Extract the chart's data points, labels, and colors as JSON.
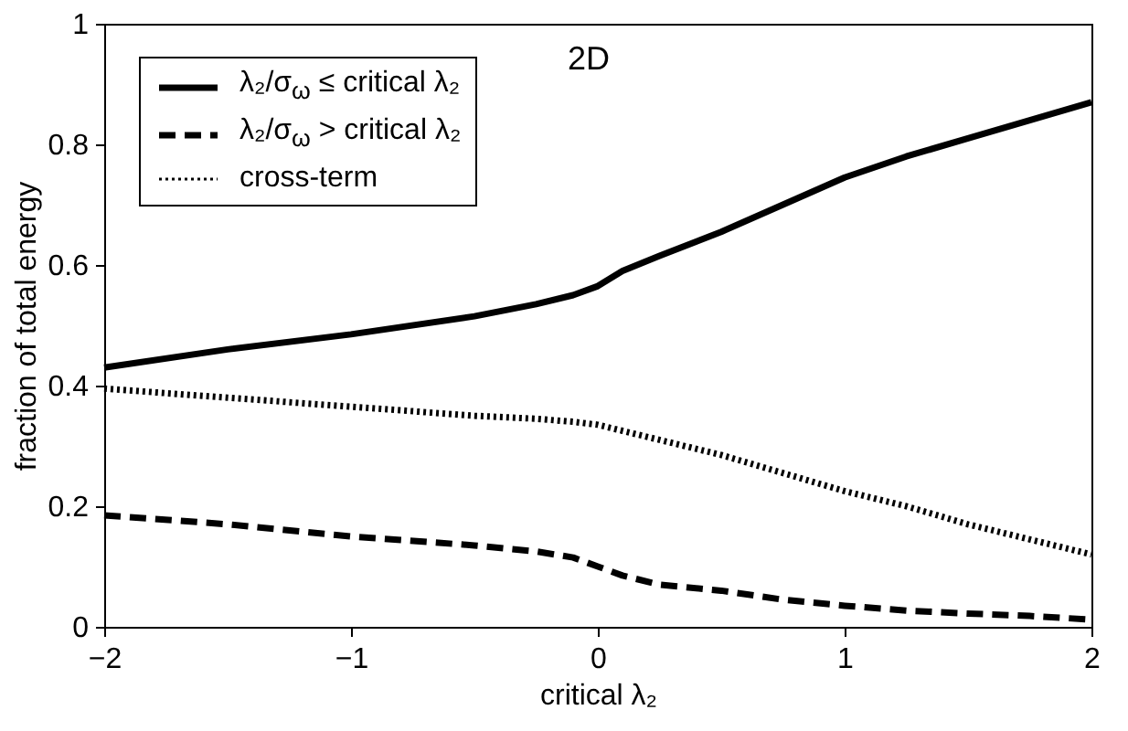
{
  "chart_data": {
    "type": "line",
    "xlabel": "critical λ₂",
    "ylabel": "fraction of total energy",
    "annotations": [
      "2D"
    ],
    "x": [
      -2,
      -1.5,
      -1,
      -0.5,
      -0.25,
      -0.1,
      0,
      0.1,
      0.25,
      0.5,
      0.75,
      1,
      1.25,
      1.5,
      1.75,
      2
    ],
    "series": [
      {
        "name": "λ₂/σ$_{ω}$ ≤ critical λ₂",
        "color": "#000000",
        "line_style": "solid",
        "values": [
          0.43,
          0.46,
          0.485,
          0.515,
          0.535,
          0.55,
          0.565,
          0.59,
          0.615,
          0.655,
          0.7,
          0.745,
          0.78,
          0.81,
          0.84,
          0.87
        ]
      },
      {
        "name": "λ₂/σ$_{ω}$ > critical λ₂",
        "color": "#000000",
        "line_style": "dashed",
        "values": [
          0.185,
          0.17,
          0.15,
          0.135,
          0.125,
          0.115,
          0.1,
          0.085,
          0.07,
          0.06,
          0.045,
          0.035,
          0.027,
          0.022,
          0.018,
          0.012
        ]
      },
      {
        "name": "cross-term",
        "color": "#000000",
        "line_style": "dotted",
        "values": [
          0.395,
          0.38,
          0.365,
          0.35,
          0.345,
          0.34,
          0.335,
          0.325,
          0.31,
          0.285,
          0.255,
          0.225,
          0.2,
          0.17,
          0.145,
          0.12
        ]
      }
    ],
    "xlim": [
      -2,
      2
    ],
    "xticks": [
      -2,
      -1,
      0,
      1,
      2
    ],
    "ylim": [
      0,
      1
    ],
    "yticks": [
      0,
      0.2,
      0.4,
      0.6,
      0.8,
      1
    ],
    "grid": false,
    "legend": "top left"
  }
}
